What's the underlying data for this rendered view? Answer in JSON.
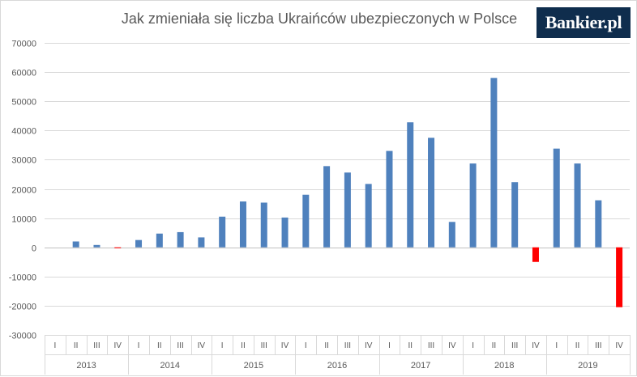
{
  "chart_data": {
    "type": "bar",
    "title": "Jak zmieniała się liczba Ukraińców ubezpieczonych w Polsce",
    "categories": [
      "I",
      "II",
      "III",
      "IV",
      "I",
      "II",
      "III",
      "IV",
      "I",
      "II",
      "III",
      "IV",
      "I",
      "II",
      "III",
      "IV",
      "I",
      "II",
      "III",
      "IV",
      "I",
      "II",
      "III",
      "IV",
      "I",
      "II",
      "III",
      "IV"
    ],
    "years": [
      {
        "label": "2013",
        "quarters": 4
      },
      {
        "label": "2014",
        "quarters": 4
      },
      {
        "label": "2015",
        "quarters": 4
      },
      {
        "label": "2016",
        "quarters": 4
      },
      {
        "label": "2017",
        "quarters": 4
      },
      {
        "label": "2018",
        "quarters": 4
      },
      {
        "label": "2019",
        "quarters": 4
      }
    ],
    "values": [
      null,
      2000,
      800,
      -300,
      2500,
      4700,
      5200,
      3400,
      10500,
      15700,
      15300,
      10200,
      18000,
      27800,
      25600,
      21700,
      33000,
      42800,
      37500,
      8700,
      28700,
      58000,
      22300,
      -5000,
      33800,
      28700,
      16100,
      -20500
    ],
    "ylim": [
      -30000,
      70000
    ],
    "yticks": [
      -30000,
      -20000,
      -10000,
      0,
      10000,
      20000,
      30000,
      40000,
      50000,
      60000,
      70000
    ],
    "grid": true,
    "colors": {
      "positive": "#4f81bd",
      "negative": "#ff0000",
      "grid": "#d9d9d9",
      "axis": "#bfbfbf"
    }
  },
  "logo": {
    "text": "Bankier.pl"
  }
}
